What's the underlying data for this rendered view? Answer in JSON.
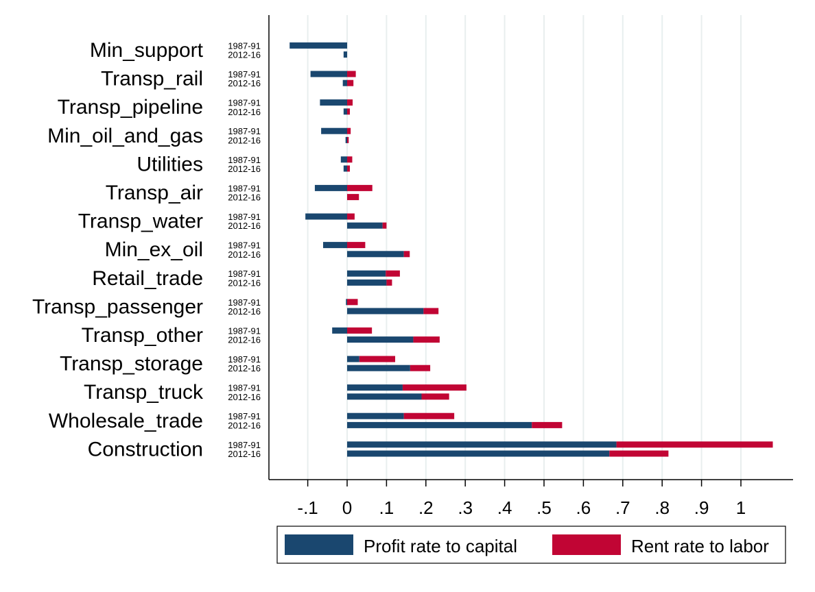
{
  "colors": {
    "profit": "#1a476f",
    "rent": "#c10534",
    "grid": "#e8eeee",
    "axis": "#000000"
  },
  "chart_data": {
    "type": "bar",
    "orientation": "horizontal",
    "stacked": true,
    "periods": [
      "1987-91",
      "2012-16"
    ],
    "xlim": [
      -0.2,
      1.13
    ],
    "xticks": [
      -0.1,
      0,
      0.1,
      0.2,
      0.3,
      0.4,
      0.5,
      0.6,
      0.7,
      0.8,
      0.9,
      1
    ],
    "xtick_labels": [
      "-.1",
      "0",
      ".1",
      ".2",
      ".3",
      ".4",
      ".5",
      ".6",
      ".7",
      ".8",
      ".9",
      "1"
    ],
    "grid": "vertical",
    "legend_position": "bottom",
    "series": [
      {
        "name": "Profit rate to capital",
        "key": "profit"
      },
      {
        "name": "Rent rate to labor",
        "key": "rent"
      }
    ],
    "categories": [
      {
        "name": "Min_support",
        "bars": [
          {
            "period": "1987-91",
            "profit": -0.146,
            "rent": 0.0
          },
          {
            "period": "2012-16",
            "profit": -0.009,
            "rent": 0.0
          }
        ]
      },
      {
        "name": "Transp_rail",
        "bars": [
          {
            "period": "1987-91",
            "profit": -0.093,
            "rent": 0.022
          },
          {
            "period": "2012-16",
            "profit": -0.011,
            "rent": 0.016
          }
        ]
      },
      {
        "name": "Transp_pipeline",
        "bars": [
          {
            "period": "1987-91",
            "profit": -0.069,
            "rent": 0.014
          },
          {
            "period": "2012-16",
            "profit": -0.009,
            "rent": 0.007
          }
        ]
      },
      {
        "name": "Min_oil_and_gas",
        "bars": [
          {
            "period": "1987-91",
            "profit": -0.066,
            "rent": 0.009
          },
          {
            "period": "2012-16",
            "profit": -0.004,
            "rent": 0.004
          }
        ]
      },
      {
        "name": "Utilities",
        "bars": [
          {
            "period": "1987-91",
            "profit": -0.016,
            "rent": 0.013
          },
          {
            "period": "2012-16",
            "profit": -0.009,
            "rent": 0.007
          }
        ]
      },
      {
        "name": "Transp_air",
        "bars": [
          {
            "period": "1987-91",
            "profit": -0.082,
            "rent": 0.064
          },
          {
            "period": "2012-16",
            "profit": 0.0,
            "rent": 0.03
          }
        ]
      },
      {
        "name": "Transp_water",
        "bars": [
          {
            "period": "1987-91",
            "profit": -0.106,
            "rent": 0.019
          },
          {
            "period": "2012-16",
            "profit": 0.09,
            "rent": 0.01
          }
        ]
      },
      {
        "name": "Min_ex_oil",
        "bars": [
          {
            "period": "1987-91",
            "profit": -0.061,
            "rent": 0.046
          },
          {
            "period": "2012-16",
            "profit": 0.144,
            "rent": 0.015
          }
        ]
      },
      {
        "name": "Retail_trade",
        "bars": [
          {
            "period": "1987-91",
            "profit": 0.098,
            "rent": 0.036
          },
          {
            "period": "2012-16",
            "profit": 0.1,
            "rent": 0.014
          }
        ]
      },
      {
        "name": "Transp_passenger",
        "bars": [
          {
            "period": "1987-91",
            "profit": -0.003,
            "rent": 0.027
          },
          {
            "period": "2012-16",
            "profit": 0.194,
            "rent": 0.038
          }
        ]
      },
      {
        "name": "Transp_other",
        "bars": [
          {
            "period": "1987-91",
            "profit": -0.038,
            "rent": 0.063
          },
          {
            "period": "2012-16",
            "profit": 0.168,
            "rent": 0.067
          }
        ]
      },
      {
        "name": "Transp_storage",
        "bars": [
          {
            "period": "1987-91",
            "profit": 0.031,
            "rent": 0.091
          },
          {
            "period": "2012-16",
            "profit": 0.16,
            "rent": 0.051
          }
        ]
      },
      {
        "name": "Transp_truck",
        "bars": [
          {
            "period": "1987-91",
            "profit": 0.141,
            "rent": 0.162
          },
          {
            "period": "2012-16",
            "profit": 0.189,
            "rent": 0.07
          }
        ]
      },
      {
        "name": "Wholesale_trade",
        "bars": [
          {
            "period": "1987-91",
            "profit": 0.144,
            "rent": 0.128
          },
          {
            "period": "2012-16",
            "profit": 0.469,
            "rent": 0.077
          }
        ]
      },
      {
        "name": "Construction",
        "bars": [
          {
            "period": "1987-91",
            "profit": 0.684,
            "rent": 0.397
          },
          {
            "period": "2012-16",
            "profit": 0.666,
            "rent": 0.15
          }
        ]
      }
    ]
  }
}
